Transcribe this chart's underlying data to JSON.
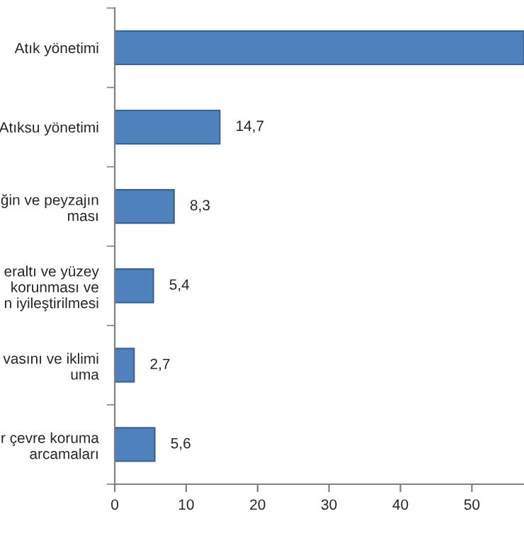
{
  "chart_data": {
    "type": "bar",
    "orientation": "horizontal",
    "categories": [
      "Atık yönetimi",
      "Atıksu yönetimi",
      "ğin ve peyzajın\nması",
      "eraltı ve yüzey\n korunması ve\nn iyileştirilmesi",
      "vasını ve iklimi\numa",
      "r çevre koruma\narcamaları"
    ],
    "values": [
      57.3,
      14.7,
      8.3,
      5.4,
      2.7,
      5.6
    ],
    "value_labels": [
      null,
      "14,7",
      "8,3",
      "5,4",
      "2,7",
      "5,6"
    ],
    "color": "#4f81bd",
    "xlim": [
      0,
      57.3
    ],
    "xticks": [
      0,
      10,
      20,
      30,
      40,
      50
    ],
    "grid": false,
    "legend": false
  }
}
